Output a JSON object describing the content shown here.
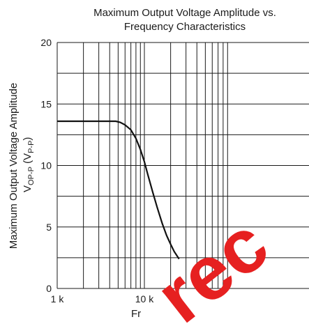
{
  "chart_data": {
    "type": "line",
    "title_lines": [
      "Maximum Output Voltage Amplitude vs.",
      "Frequency Characteristics"
    ],
    "xlabel": "Fr",
    "ylabel": {
      "line1": "Maximum Output Voltage Amplitude",
      "main": "V",
      "sub1": "OP-P",
      "mid": " (V",
      "sub2": "P-P",
      "end": ")"
    },
    "x_scale": "log",
    "xlim": [
      1000,
      100000
    ],
    "ylim": [
      0,
      20
    ],
    "x_ticks": [
      {
        "value": 1000,
        "label": "1 k"
      },
      {
        "value": 10000,
        "label": "10 k"
      }
    ],
    "y_ticks": [
      {
        "value": 0,
        "label": "0"
      },
      {
        "value": 5,
        "label": "5"
      },
      {
        "value": 10,
        "label": "10"
      },
      {
        "value": 15,
        "label": "15"
      },
      {
        "value": 20,
        "label": "20"
      }
    ],
    "y_gridlines": [
      0,
      2.5,
      5,
      7.5,
      10,
      12.5,
      15,
      17.5,
      20
    ],
    "grid": true,
    "series": [
      {
        "x": [
          1000,
          2000,
          3000,
          4000,
          4700,
          5300,
          6000,
          7000,
          8000,
          9000,
          10000,
          11000,
          12500,
          14000,
          16000,
          18000,
          20000,
          22000,
          25000
        ],
        "y": [
          13.6,
          13.6,
          13.6,
          13.6,
          13.6,
          13.5,
          13.3,
          12.9,
          12.2,
          11.3,
          10.3,
          9.2,
          7.8,
          6.6,
          5.3,
          4.3,
          3.6,
          3.0,
          2.4
        ],
        "color": "#111111"
      }
    ]
  },
  "watermark": {
    "text": "rec",
    "color": "#e62020"
  }
}
